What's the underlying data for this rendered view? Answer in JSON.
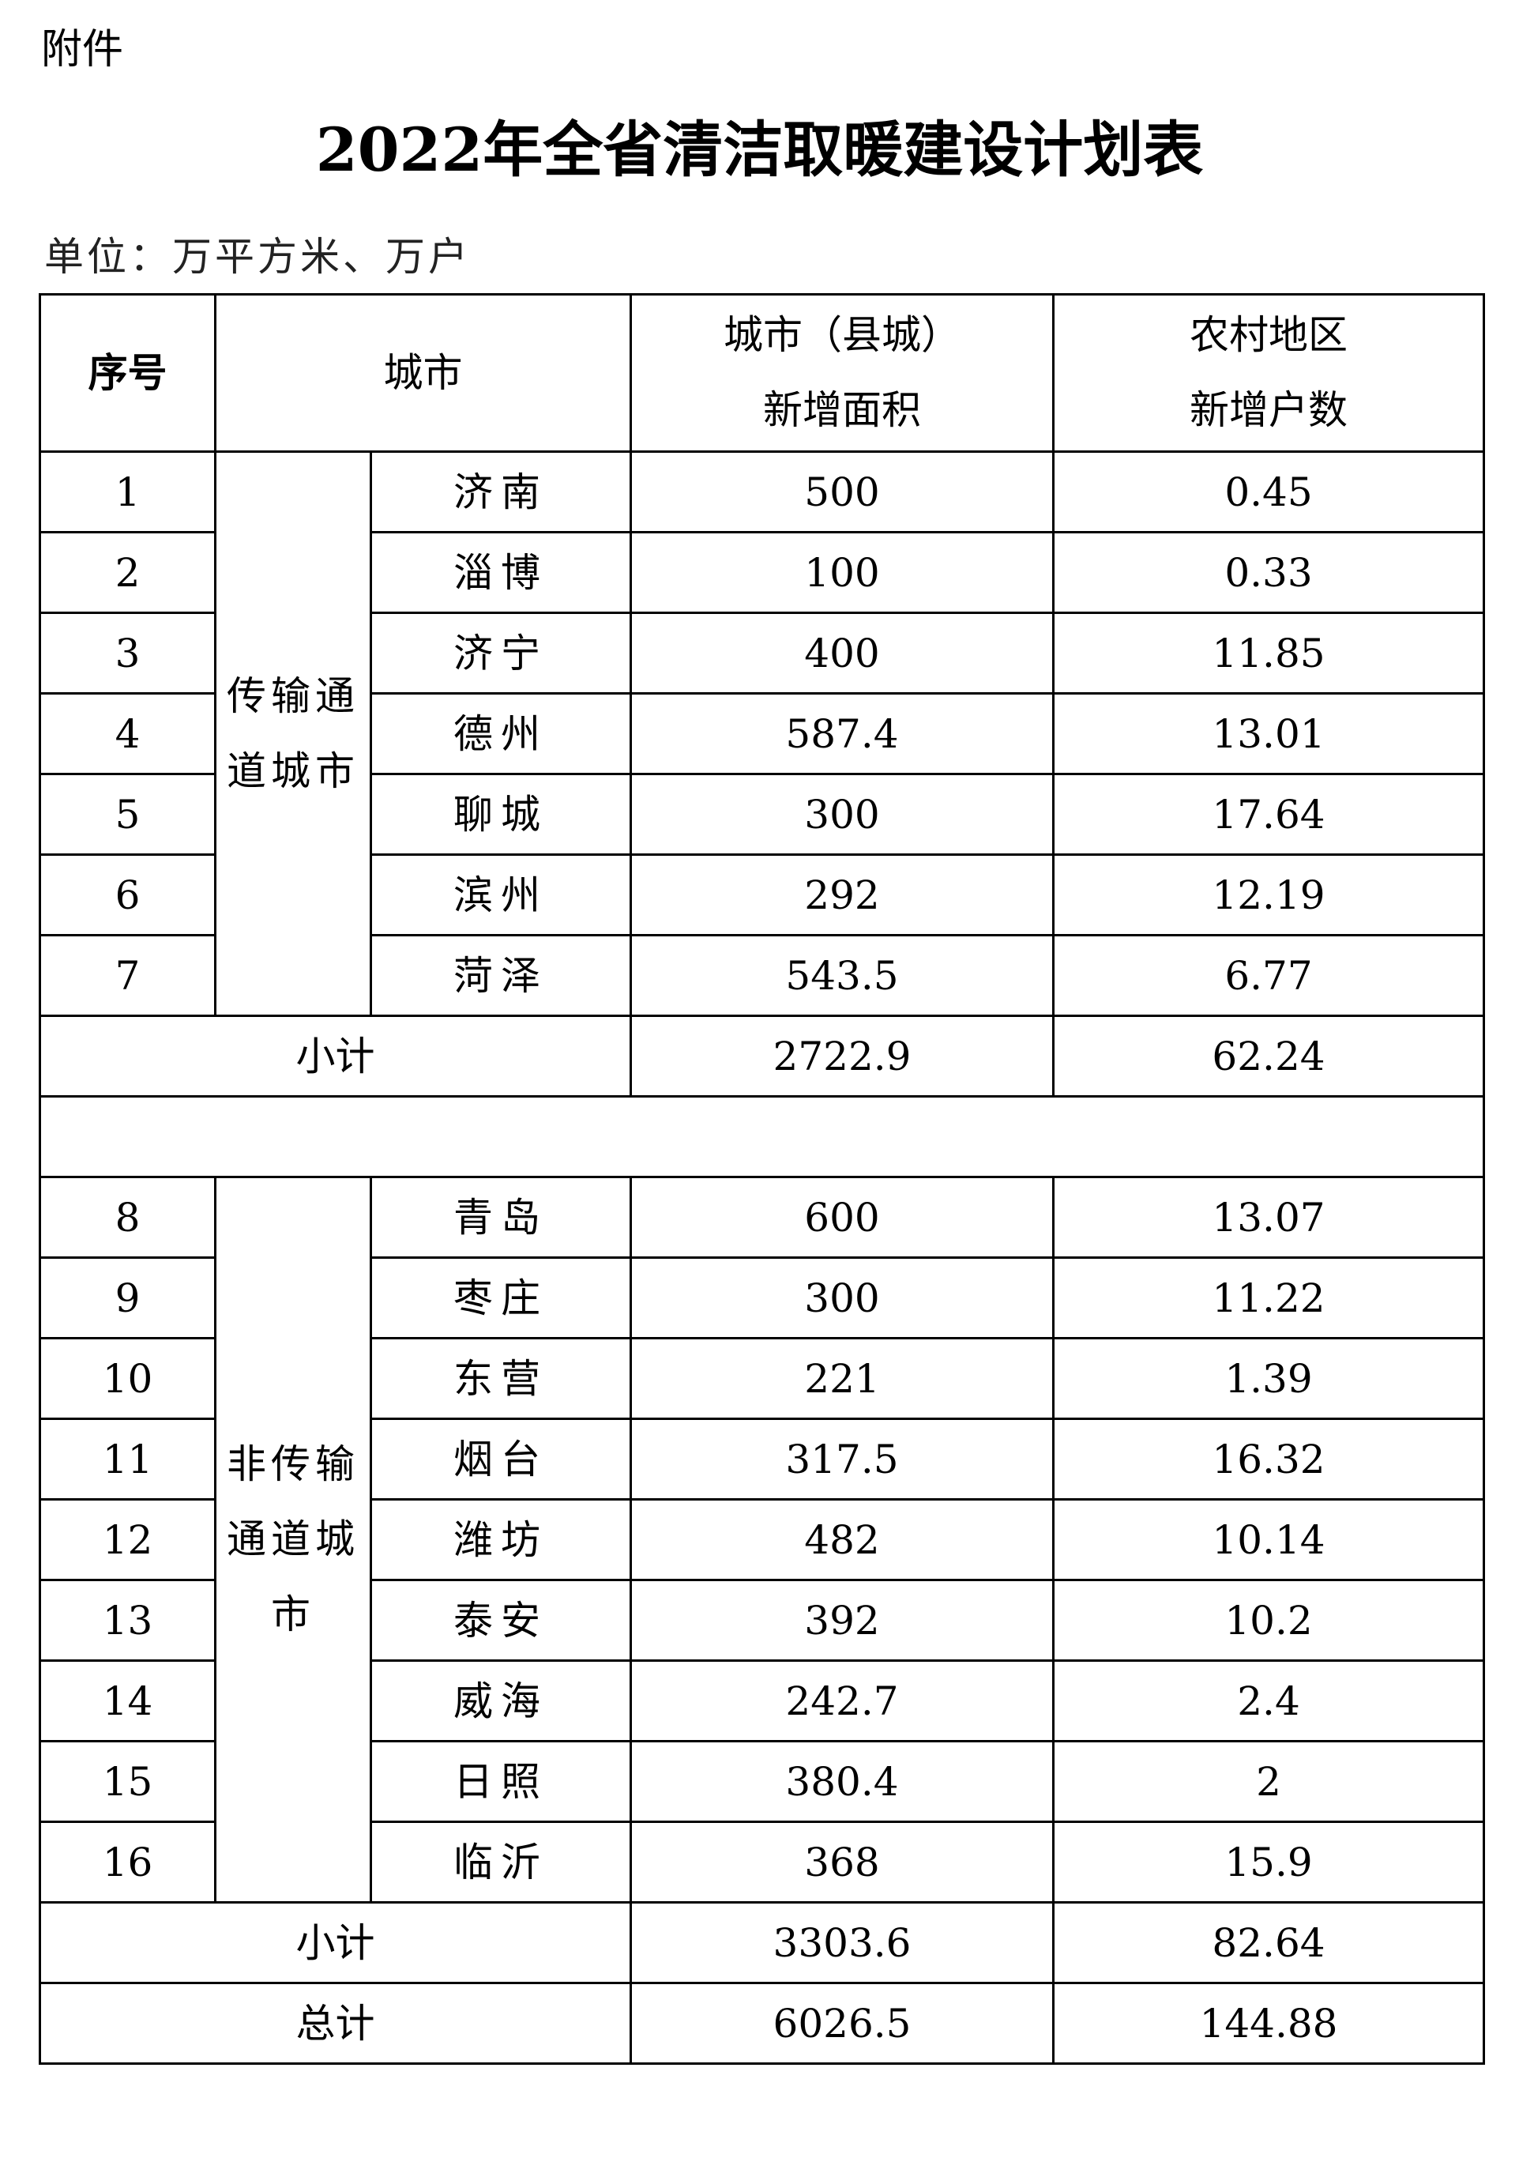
{
  "attachment_label": "附件",
  "title": "2022年全省清洁取暖建设计划表",
  "unit": "单位：万平方米、万户",
  "headers": {
    "seq": "序号",
    "city": "城市",
    "urban_area_line1": "城市（县城）",
    "urban_area_line2": "新增面积",
    "rural_line1": "农村地区",
    "rural_line2": "新增户数"
  },
  "groups": [
    {
      "name": "传输通道城市",
      "rows": [
        {
          "seq": "1",
          "city": "济南",
          "area": "500",
          "households": "0.45"
        },
        {
          "seq": "2",
          "city": "淄博",
          "area": "100",
          "households": "0.33"
        },
        {
          "seq": "3",
          "city": "济宁",
          "area": "400",
          "households": "11.85"
        },
        {
          "seq": "4",
          "city": "德州",
          "area": "587.4",
          "households": "13.01"
        },
        {
          "seq": "5",
          "city": "聊城",
          "area": "300",
          "households": "17.64"
        },
        {
          "seq": "6",
          "city": "滨州",
          "area": "292",
          "households": "12.19"
        },
        {
          "seq": "7",
          "city": "菏泽",
          "area": "543.5",
          "households": "6.77"
        }
      ],
      "subtotal": {
        "label": "小计",
        "area": "2722.9",
        "households": "62.24"
      }
    },
    {
      "name": "非传输通道城市",
      "rows": [
        {
          "seq": "8",
          "city": "青岛",
          "area": "600",
          "households": "13.07"
        },
        {
          "seq": "9",
          "city": "枣庄",
          "area": "300",
          "households": "11.22"
        },
        {
          "seq": "10",
          "city": "东营",
          "area": "221",
          "households": "1.39"
        },
        {
          "seq": "11",
          "city": "烟台",
          "area": "317.5",
          "households": "16.32"
        },
        {
          "seq": "12",
          "city": "潍坊",
          "area": "482",
          "households": "10.14"
        },
        {
          "seq": "13",
          "city": "泰安",
          "area": "392",
          "households": "10.2"
        },
        {
          "seq": "14",
          "city": "威海",
          "area": "242.7",
          "households": "2.4"
        },
        {
          "seq": "15",
          "city": "日照",
          "area": "380.4",
          "households": "2"
        },
        {
          "seq": "16",
          "city": "临沂",
          "area": "368",
          "households": "15.9"
        }
      ],
      "subtotal": {
        "label": "小计",
        "area": "3303.6",
        "households": "82.64"
      }
    }
  ],
  "total": {
    "label": "总计",
    "area": "6026.5",
    "households": "144.88"
  }
}
